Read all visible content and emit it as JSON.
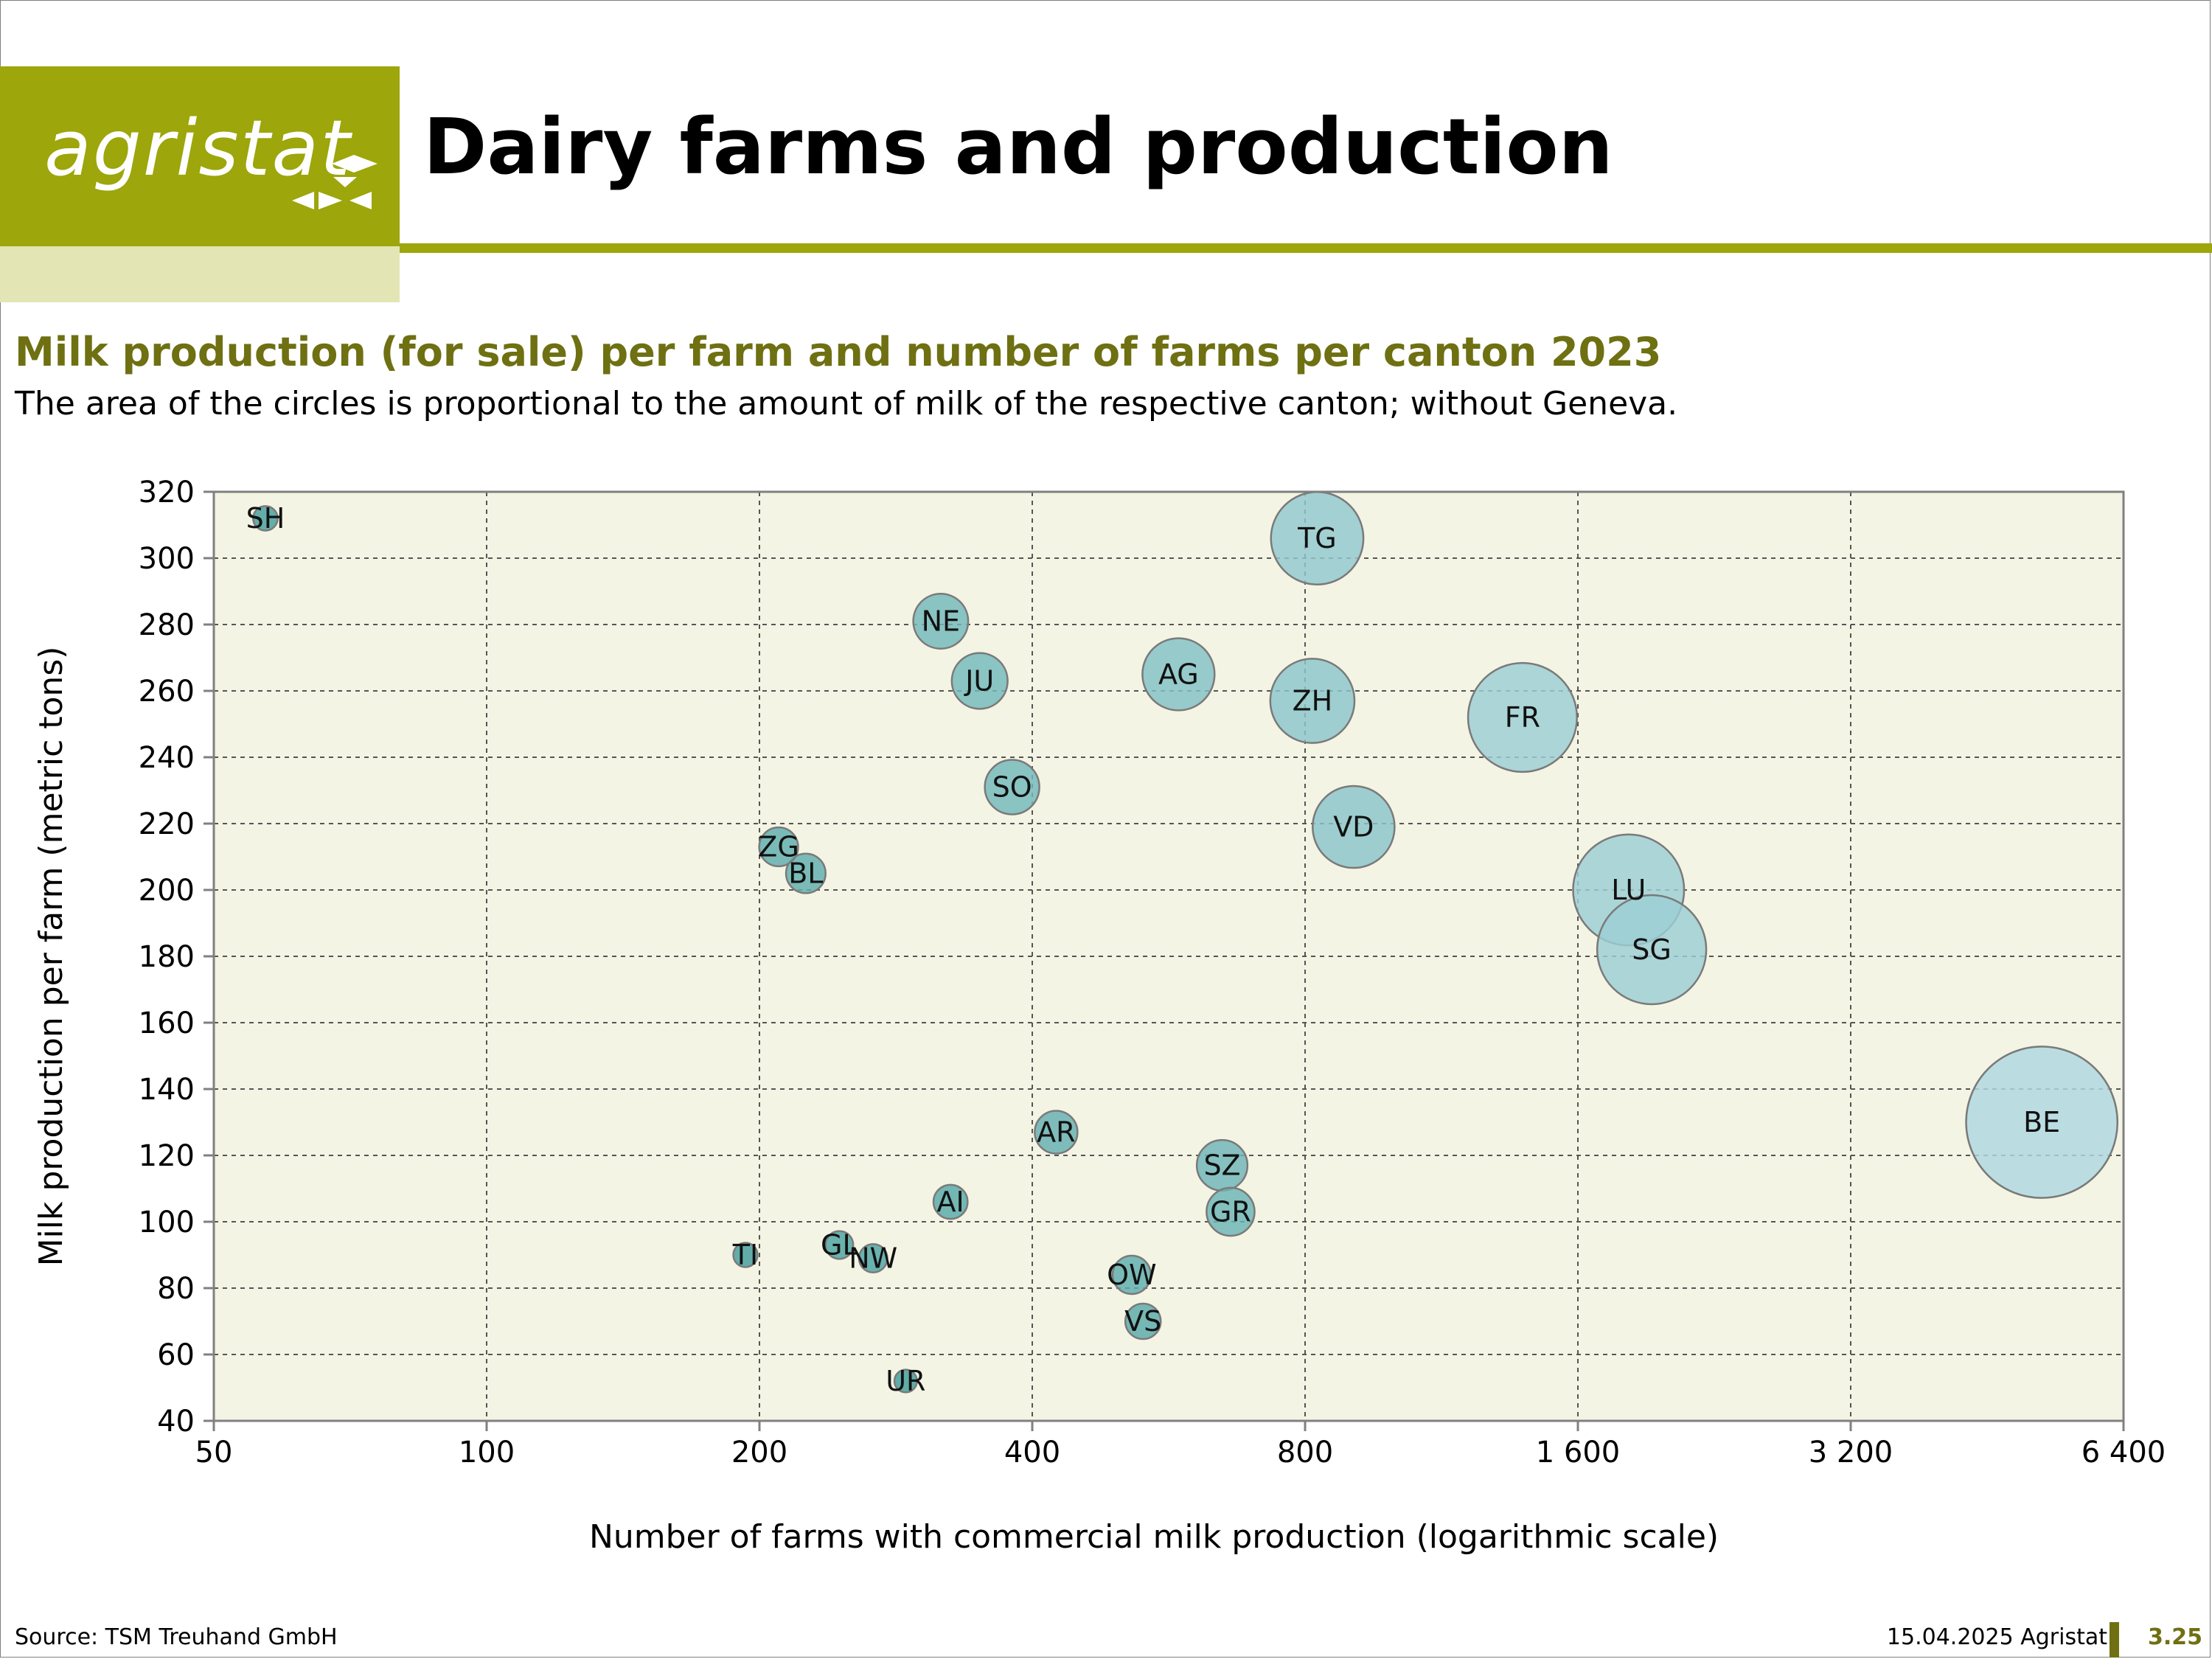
{
  "header": {
    "logo_text": "agristat",
    "title": "Dairy farms and production"
  },
  "chart_heading": {
    "title": "Milk production (for sale) per farm and number of farms per canton 2023",
    "subtitle": "The area of the circles is proportional to the amount of milk of the respective canton; without Geneva."
  },
  "footer": {
    "source": "Source: TSM Treuhand GmbH",
    "date": "15.04.2025 Agristat",
    "page": "3.25"
  },
  "colors": {
    "accent": "#9da60a",
    "accent_light": "#e3e5b4",
    "title_text": "#6e7012",
    "plot_background": "#f4f4e4",
    "bubble_dark": "#3e9c9b",
    "bubble_light": "#aed8e0"
  },
  "chart_data": {
    "type": "scatter",
    "variant": "bubble",
    "xlabel": "Number of farms with commercial milk production (logarithmic scale)",
    "ylabel": "Milk production per farm (metric tons)",
    "x_scale": "log",
    "xlim": [
      50,
      6400
    ],
    "ylim": [
      40,
      320
    ],
    "x_ticks": [
      50,
      100,
      200,
      400,
      800,
      1600,
      3200,
      6400
    ],
    "x_tick_labels": [
      "50",
      "100",
      "200",
      "400",
      "800",
      "1 600",
      "3 200",
      "6 400"
    ],
    "y_ticks": [
      40,
      60,
      80,
      100,
      120,
      140,
      160,
      180,
      200,
      220,
      240,
      260,
      280,
      300,
      320
    ],
    "y_tick_labels": [
      "40",
      "60",
      "80",
      "100",
      "120",
      "140",
      "160",
      "180",
      "200",
      "220",
      "240",
      "260",
      "280",
      "300",
      "320"
    ],
    "grid": true,
    "bubble_size_represents": "total milk of canton (farms × production per farm)",
    "points": [
      {
        "label": "SH",
        "x": 57,
        "y": 312
      },
      {
        "label": "TI",
        "x": 193,
        "y": 90
      },
      {
        "label": "ZG",
        "x": 210,
        "y": 213
      },
      {
        "label": "BL",
        "x": 225,
        "y": 205
      },
      {
        "label": "GL",
        "x": 245,
        "y": 93
      },
      {
        "label": "NW",
        "x": 267,
        "y": 89
      },
      {
        "label": "UR",
        "x": 290,
        "y": 52
      },
      {
        "label": "NE",
        "x": 317,
        "y": 281
      },
      {
        "label": "AI",
        "x": 325,
        "y": 106
      },
      {
        "label": "JU",
        "x": 350,
        "y": 263
      },
      {
        "label": "SO",
        "x": 380,
        "y": 231
      },
      {
        "label": "AR",
        "x": 425,
        "y": 127
      },
      {
        "label": "OW",
        "x": 515,
        "y": 84
      },
      {
        "label": "VS",
        "x": 530,
        "y": 70
      },
      {
        "label": "AG",
        "x": 580,
        "y": 265
      },
      {
        "label": "SZ",
        "x": 648,
        "y": 117
      },
      {
        "label": "GR",
        "x": 662,
        "y": 103
      },
      {
        "label": "TG",
        "x": 825,
        "y": 306
      },
      {
        "label": "ZH",
        "x": 815,
        "y": 257
      },
      {
        "label": "VD",
        "x": 905,
        "y": 219
      },
      {
        "label": "FR",
        "x": 1390,
        "y": 252
      },
      {
        "label": "LU",
        "x": 1820,
        "y": 200
      },
      {
        "label": "SG",
        "x": 1930,
        "y": 182
      },
      {
        "label": "BE",
        "x": 5200,
        "y": 130
      }
    ]
  }
}
